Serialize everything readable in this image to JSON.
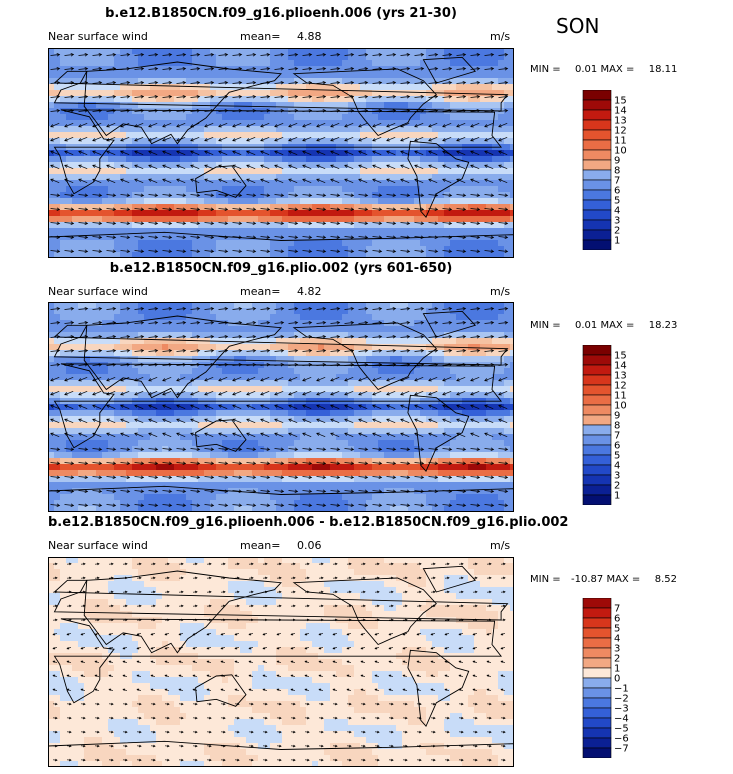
{
  "season": "SON",
  "colors": {
    "positive": [
      "#f8d6bf",
      "#f5c2a2",
      "#f2a883",
      "#ee8a62",
      "#ea6d45",
      "#e4542e",
      "#d8361c",
      "#c21a10",
      "#9e0a08",
      "#7a0000"
    ],
    "negative": [
      "#c8dcf8",
      "#a9c5f2",
      "#89acec",
      "#6a92e6",
      "#4b78e0",
      "#3460d8",
      "#2249c8",
      "#1534b2",
      "#0b2094",
      "#030f72"
    ],
    "neutral": "#fde8d8",
    "land": "#000000"
  },
  "panels": [
    {
      "title": "b.e12.B1850CN.f09_g16.plioenh.006 (yrs 21-30)",
      "variable": "Near surface wind",
      "mean_label": "mean=",
      "mean_value": "4.88",
      "units": "m/s",
      "min_label": "MIN =",
      "min_value": "0.01",
      "max_label": "MAX =",
      "max_value": "18.11",
      "colorbar_ticks": [
        "15",
        "14",
        "13",
        "12",
        "11",
        "10",
        "9",
        "8",
        "7",
        "6",
        "5",
        "4",
        "3",
        "2",
        "1"
      ],
      "kind": "abs"
    },
    {
      "title": "b.e12.B1850CN.f09_g16.plio.002 (yrs 601-650)",
      "variable": "Near surface wind",
      "mean_label": "mean=",
      "mean_value": "4.82",
      "units": "m/s",
      "min_label": "MIN =",
      "min_value": "0.01",
      "max_label": "MAX =",
      "max_value": "18.23",
      "colorbar_ticks": [
        "15",
        "14",
        "13",
        "12",
        "11",
        "10",
        "9",
        "8",
        "7",
        "6",
        "5",
        "4",
        "3",
        "2",
        "1"
      ],
      "kind": "abs"
    },
    {
      "title": "b.e12.B1850CN.f09_g16.plioenh.006 - b.e12.B1850CN.f09_g16.plio.002",
      "variable": "Near surface wind",
      "mean_label": "mean=",
      "mean_value": "0.06",
      "units": "m/s",
      "min_label": "MIN =",
      "min_value": "-10.87",
      "max_label": "MAX =",
      "max_value": "8.52",
      "colorbar_ticks": [
        "7",
        "6",
        "5",
        "4",
        "3",
        "2",
        "1",
        "0",
        "−1",
        "−2",
        "−3",
        "−4",
        "−5",
        "−6",
        "−7"
      ],
      "kind": "diff"
    }
  ]
}
